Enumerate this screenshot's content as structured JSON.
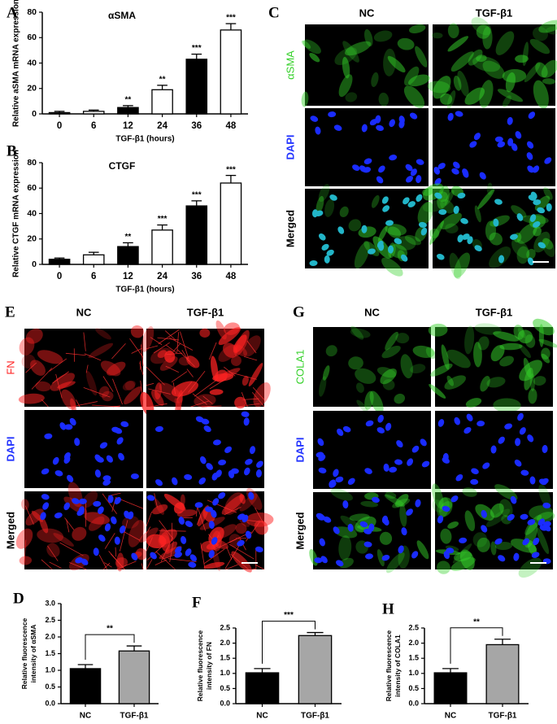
{
  "chart_data": [
    {
      "type": "bar",
      "panel": "A",
      "title": "αSMA",
      "ylabel": [
        "Relative aSMA mRNA expression"
      ],
      "xlabel": "TGF-β1 (hours)",
      "categories": [
        "0",
        "6",
        "12",
        "24",
        "36",
        "48"
      ],
      "values": [
        1,
        2,
        5,
        19,
        43,
        66
      ],
      "errors": [
        1,
        1,
        1.5,
        3.5,
        4,
        5
      ],
      "colors": [
        "#000000",
        "#ffffff",
        "#000000",
        "#ffffff",
        "#000000",
        "#ffffff"
      ],
      "annotations": [
        null,
        null,
        "**",
        "**",
        "***",
        "***"
      ],
      "ylim": [
        0,
        80
      ],
      "yticks": [
        0,
        20,
        40,
        60,
        80
      ]
    },
    {
      "type": "bar",
      "panel": "B",
      "title": "CTGF",
      "ylabel": [
        "Relative CTGF mRNA expression"
      ],
      "xlabel": "TGF-β1 (hours)",
      "categories": [
        "0",
        "6",
        "12",
        "24",
        "36",
        "48"
      ],
      "values": [
        4,
        7.5,
        14,
        27,
        46,
        64
      ],
      "errors": [
        1,
        2,
        3,
        4,
        4,
        6
      ],
      "colors": [
        "#000000",
        "#ffffff",
        "#000000",
        "#ffffff",
        "#000000",
        "#ffffff"
      ],
      "annotations": [
        null,
        null,
        "**",
        "***",
        "***",
        "***"
      ],
      "ylim": [
        0,
        80
      ],
      "yticks": [
        0,
        20,
        40,
        60,
        80
      ]
    },
    {
      "type": "bar",
      "panel": "D",
      "ylabel": [
        "Relative  fluorescence",
        "intensity of αSMA"
      ],
      "categories": [
        "NC",
        "TGF-β1"
      ],
      "values": [
        1.05,
        1.58
      ],
      "errors": [
        0.12,
        0.15
      ],
      "colors": [
        "#000000",
        "#a6a6a6"
      ],
      "significance": "**",
      "ylim": [
        0,
        3.0
      ],
      "yticks": [
        {
          "value": 0,
          "label": "0.0"
        },
        0.5,
        {
          "value": 1,
          "label": "1.0"
        },
        1.5,
        {
          "value": 2,
          "label": "2.0"
        },
        2.5,
        {
          "value": 3,
          "label": "3.0"
        }
      ]
    },
    {
      "type": "bar",
      "panel": "F",
      "ylabel": [
        "Relative  fluorescence",
        "intensity of FN"
      ],
      "categories": [
        "NC",
        "TGF-β1"
      ],
      "values": [
        1.02,
        2.25
      ],
      "errors": [
        0.14,
        0.1
      ],
      "colors": [
        "#000000",
        "#a6a6a6"
      ],
      "significance": "***",
      "ylim": [
        0,
        2.5
      ],
      "yticks": [
        {
          "value": 0,
          "label": "0.0"
        },
        0.5,
        {
          "value": 1,
          "label": "1.0"
        },
        1.5,
        {
          "value": 2,
          "label": "2.0"
        },
        2.5
      ]
    },
    {
      "type": "bar",
      "panel": "H",
      "ylabel": [
        "Relative  fluorescence",
        "intensity of COLA1"
      ],
      "categories": [
        "NC",
        "TGF-β1"
      ],
      "values": [
        1.02,
        1.95
      ],
      "errors": [
        0.14,
        0.18
      ],
      "colors": [
        "#000000",
        "#a6a6a6"
      ],
      "significance": "**",
      "ylim": [
        0,
        2.5
      ],
      "yticks": [
        {
          "value": 0,
          "label": "0.0"
        },
        0.5,
        {
          "value": 1,
          "label": "1.0"
        },
        1.5,
        {
          "value": 2,
          "label": "2.0"
        },
        2.5
      ]
    }
  ],
  "image_panels": [
    {
      "panel": "C",
      "columns": [
        "NC",
        "TGF-β1"
      ],
      "rows": [
        "αSMA",
        "DAPI",
        "Merged"
      ]
    },
    {
      "panel": "E",
      "columns": [
        "NC",
        "TGF-β1"
      ],
      "rows": [
        "FN",
        "DAPI",
        "Merged"
      ]
    },
    {
      "panel": "G",
      "columns": [
        "NC",
        "TGF-β1"
      ],
      "rows": [
        "COLA1",
        "DAPI",
        "Merged"
      ]
    }
  ]
}
